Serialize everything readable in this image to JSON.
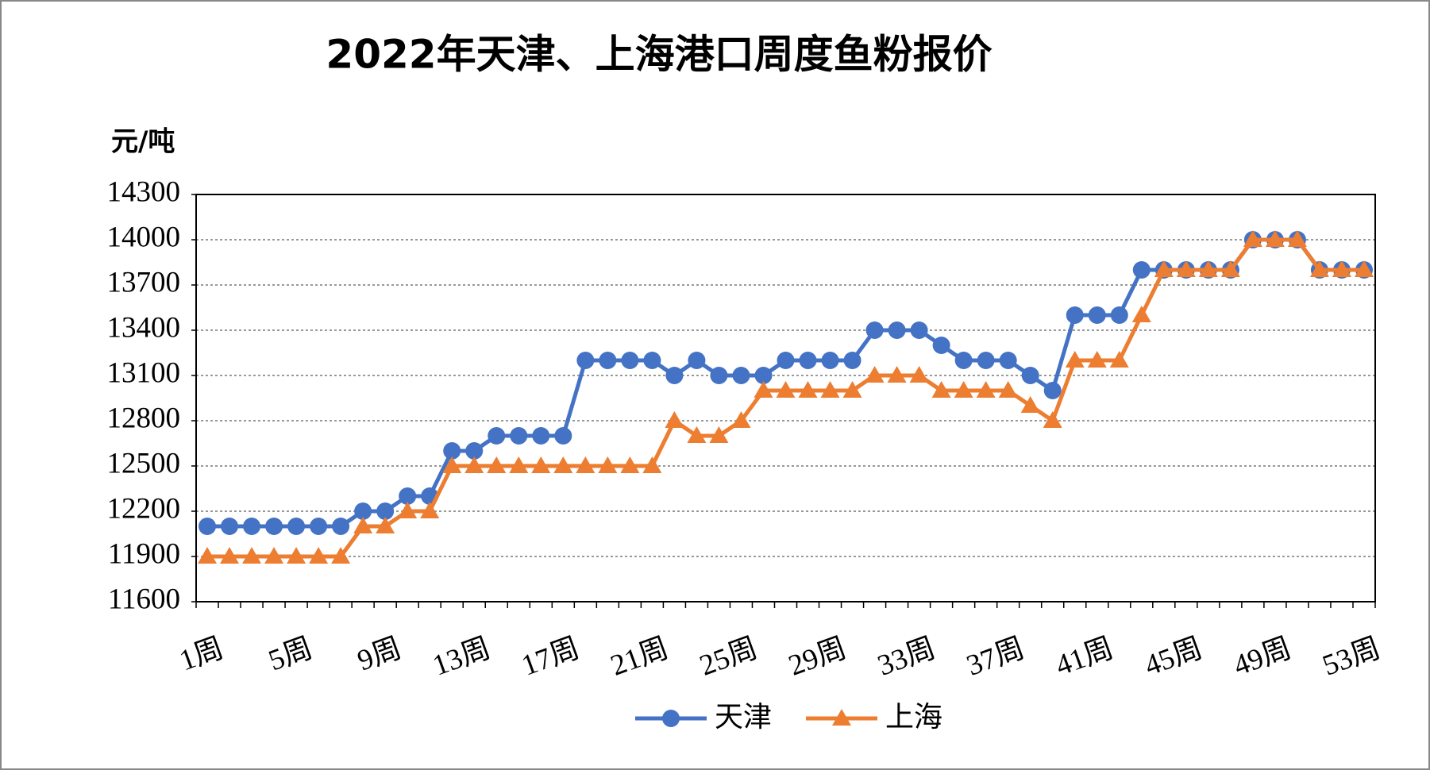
{
  "chart_data": {
    "type": "line",
    "title": "2022年天津、上海港口周度鱼粉报价",
    "y_axis_label": "元/吨",
    "categories": [
      "1周",
      null,
      null,
      null,
      "5周",
      null,
      null,
      null,
      "9周",
      null,
      null,
      null,
      "13周",
      null,
      null,
      null,
      "17周",
      null,
      null,
      null,
      "21周",
      null,
      null,
      null,
      "25周",
      null,
      null,
      null,
      "29周",
      null,
      null,
      null,
      "33周",
      null,
      null,
      null,
      "37周",
      null,
      null,
      null,
      "41周",
      null,
      null,
      null,
      "45周",
      null,
      null,
      null,
      "49周",
      null,
      null,
      null,
      "53周"
    ],
    "series": [
      {
        "name": "天津",
        "color": "#4472c4",
        "marker": "circle",
        "values": [
          12100,
          12100,
          12100,
          12100,
          12100,
          12100,
          12100,
          12200,
          12200,
          12300,
          12300,
          12600,
          12600,
          12700,
          12700,
          12700,
          12700,
          13200,
          13200,
          13200,
          13200,
          13100,
          13200,
          13100,
          13100,
          13100,
          13200,
          13200,
          13200,
          13200,
          13400,
          13400,
          13400,
          13300,
          13200,
          13200,
          13200,
          13100,
          13000,
          13500,
          13500,
          13500,
          13800,
          13800,
          13800,
          13800,
          13800,
          14000,
          14000,
          14000,
          13800,
          13800,
          13800
        ]
      },
      {
        "name": "上海",
        "color": "#ed7d31",
        "marker": "triangle",
        "values": [
          11900,
          11900,
          11900,
          11900,
          11900,
          11900,
          11900,
          12100,
          12100,
          12200,
          12200,
          12500,
          12500,
          12500,
          12500,
          12500,
          12500,
          12500,
          12500,
          12500,
          12500,
          12800,
          12700,
          12700,
          12800,
          13000,
          13000,
          13000,
          13000,
          13000,
          13100,
          13100,
          13100,
          13000,
          13000,
          13000,
          13000,
          12900,
          12800,
          13200,
          13200,
          13200,
          13500,
          13800,
          13800,
          13800,
          13800,
          14000,
          14000,
          14000,
          13800,
          13800,
          13800
        ]
      }
    ],
    "ylim": [
      11600,
      14300
    ],
    "yticks": [
      11600,
      11900,
      12200,
      12500,
      12800,
      13100,
      13400,
      13700,
      14000,
      14300
    ],
    "grid": true,
    "legend": "bottom"
  }
}
